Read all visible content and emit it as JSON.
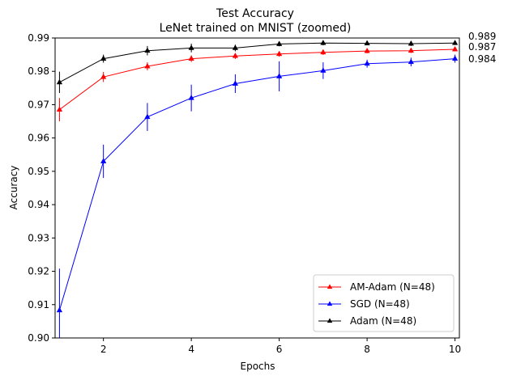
{
  "chart_data": {
    "type": "line",
    "title": "Test Accuracy",
    "subtitle": "LeNet trained on MNIST (zoomed)",
    "xlabel": "Epochs",
    "ylabel": "Accuracy",
    "xlim": [
      0.9,
      10.1
    ],
    "ylim": [
      0.9,
      0.99
    ],
    "x_ticks": [
      2,
      4,
      6,
      8,
      10
    ],
    "y_ticks": [
      0.9,
      0.91,
      0.92,
      0.93,
      0.94,
      0.95,
      0.96,
      0.97,
      0.98,
      0.99
    ],
    "y_tick_labels": [
      "0.90",
      "0.91",
      "0.92",
      "0.93",
      "0.94",
      "0.95",
      "0.96",
      "0.97",
      "0.98",
      "0.99"
    ],
    "grid": false,
    "legend_position": "lower-right",
    "x": [
      1,
      2,
      3,
      4,
      5,
      6,
      7,
      8,
      9,
      10
    ],
    "series": [
      {
        "name": "AM-Adam (N=48)",
        "color": "#ff0000",
        "values": [
          0.9685,
          0.9783,
          0.9815,
          0.9838,
          0.9846,
          0.9852,
          0.9857,
          0.9861,
          0.9862,
          0.9866
        ],
        "err": [
          0.0035,
          0.0015,
          0.0012,
          0.001,
          0.0009,
          0.0008,
          0.0008,
          0.0007,
          0.0007,
          0.0006
        ]
      },
      {
        "name": "SGD (N=48)",
        "color": "#0000ff",
        "values": [
          0.9083,
          0.953,
          0.9663,
          0.972,
          0.9763,
          0.9785,
          0.9802,
          0.9823,
          0.9828,
          0.9838
        ],
        "err": [
          0.0125,
          0.005,
          0.0042,
          0.004,
          0.0028,
          0.0045,
          0.0025,
          0.0012,
          0.0013,
          0.0012
        ]
      },
      {
        "name": "Adam (N=48)",
        "color": "#000000",
        "values": [
          0.9767,
          0.9838,
          0.9862,
          0.987,
          0.987,
          0.9882,
          0.9885,
          0.9884,
          0.9883,
          0.9885
        ],
        "err": [
          0.0032,
          0.0012,
          0.0014,
          0.0013,
          0.001,
          0.0007,
          0.0007,
          0.0006,
          0.0007,
          0.0006
        ]
      }
    ],
    "end_labels": [
      "0.989",
      "0.987",
      "0.984"
    ]
  }
}
